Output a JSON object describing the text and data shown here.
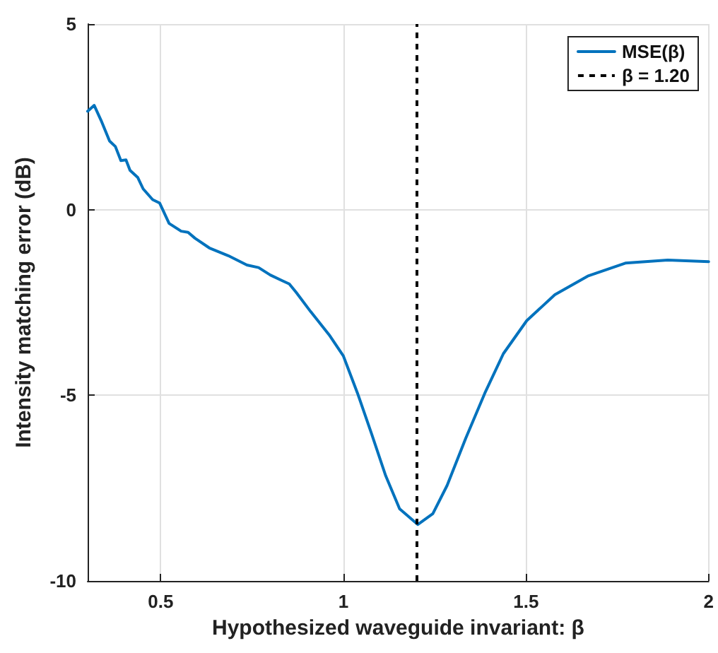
{
  "chart_data": {
    "type": "line",
    "xlabel": "Hypothesized waveguide invariant: β",
    "ylabel": "Intensity matching error (dB)",
    "xlim": [
      0.3,
      2
    ],
    "xticks": [
      0.5,
      1,
      1.5,
      2
    ],
    "ylim": [
      -10,
      5
    ],
    "yticks": [
      -10,
      -5,
      0,
      5
    ],
    "grid": true,
    "legend": "top right",
    "marker": "none",
    "line_style": "solid",
    "series": [
      {
        "name": "MSE(β)",
        "color": "#0072bd",
        "x": [
          0.3,
          0.318,
          0.337,
          0.36,
          0.376,
          0.391,
          0.405,
          0.416,
          0.437,
          0.452,
          0.478,
          0.497,
          0.523,
          0.556,
          0.575,
          0.594,
          0.633,
          0.685,
          0.736,
          0.768,
          0.8,
          0.832,
          0.852,
          0.871,
          0.91,
          0.961,
          1.0,
          1.039,
          1.077,
          1.116,
          1.154,
          1.204,
          1.245,
          1.284,
          1.335,
          1.387,
          1.438,
          1.502,
          1.579,
          1.669,
          1.772,
          1.888,
          2.0
        ],
        "values": [
          2.65,
          2.81,
          2.4,
          1.85,
          1.7,
          1.32,
          1.34,
          1.06,
          0.87,
          0.56,
          0.27,
          0.18,
          -0.37,
          -0.58,
          -0.61,
          -0.77,
          -1.03,
          -1.24,
          -1.49,
          -1.56,
          -1.76,
          -1.91,
          -2.0,
          -2.23,
          -2.74,
          -3.37,
          -3.94,
          -4.95,
          -6.03,
          -7.17,
          -8.06,
          -8.48,
          -8.19,
          -7.43,
          -6.16,
          -4.95,
          -3.88,
          -2.99,
          -2.29,
          -1.79,
          -1.44,
          -1.36,
          -1.4
        ]
      }
    ],
    "ref_lines": [
      {
        "axis": "x",
        "value": 1.2,
        "label": "β = 1.20",
        "color": "#000000",
        "line_style": "dashed"
      }
    ]
  }
}
